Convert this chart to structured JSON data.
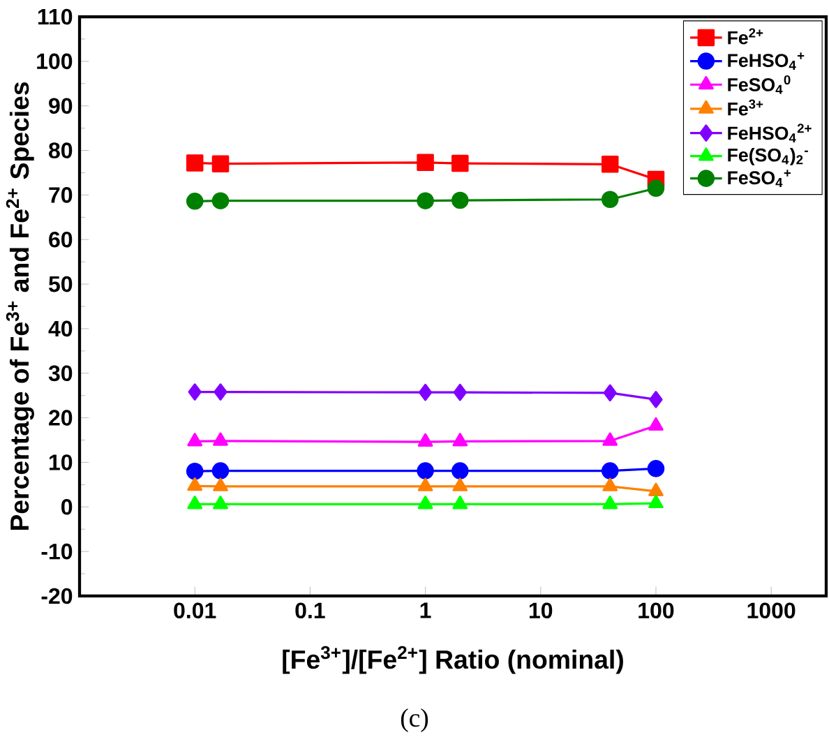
{
  "chart_data": {
    "type": "line",
    "xlabel": "[Fe$^{3+}$]/[Fe$^{2+}$] Ratio (nominal)",
    "ylabel": "Percentage of Fe$^{3+}$ and Fe$^{2+}$ Species",
    "x": [
      0.01,
      0.0167,
      1,
      2,
      40,
      100
    ],
    "series": [
      {
        "name": "Fe$^{2+}$",
        "color": "#ff0000",
        "marker": "square",
        "values": [
          77.2,
          77.0,
          77.3,
          77.1,
          76.9,
          73.5
        ]
      },
      {
        "name": "FeHSO$_{4}$$^{+}$",
        "color": "#0000ff",
        "marker": "circle",
        "values": [
          8.0,
          8.1,
          8.1,
          8.1,
          8.1,
          8.6
        ]
      },
      {
        "name": "FeSO$_{4}$$^{0}$",
        "color": "#ff00ff",
        "marker": "triangle",
        "values": [
          14.7,
          14.8,
          14.6,
          14.7,
          14.8,
          18.2
        ]
      },
      {
        "name": "Fe$^{3+}$",
        "color": "#ff8000",
        "marker": "triangle",
        "values": [
          4.7,
          4.6,
          4.6,
          4.6,
          4.6,
          3.5
        ]
      },
      {
        "name": "FeHSO$_{4}$$^{2+}$",
        "color": "#8000ff",
        "marker": "diamond",
        "values": [
          25.8,
          25.8,
          25.7,
          25.7,
          25.6,
          24.1
        ]
      },
      {
        "name": "Fe(SO$_{4}$)$_{2}$$^{-}$",
        "color": "#00ff00",
        "marker": "triangle",
        "values": [
          0.6,
          0.6,
          0.6,
          0.6,
          0.6,
          0.8
        ]
      },
      {
        "name": "FeSO$_{4}$$^{+}$",
        "color": "#008000",
        "marker": "circle",
        "values": [
          68.6,
          68.7,
          68.7,
          68.8,
          69.0,
          71.5
        ]
      }
    ],
    "log": "x",
    "xlim": [
      0.001,
      3000
    ],
    "xticks": [
      0.01,
      0.1,
      1,
      10,
      100,
      1000
    ],
    "ylim": [
      -20,
      110
    ],
    "yticks": [
      -20,
      -10,
      0,
      10,
      20,
      30,
      40,
      50,
      60,
      70,
      80,
      90,
      100,
      110
    ],
    "legend": "top right",
    "grid": false,
    "annotations": [
      "(c)"
    ]
  }
}
